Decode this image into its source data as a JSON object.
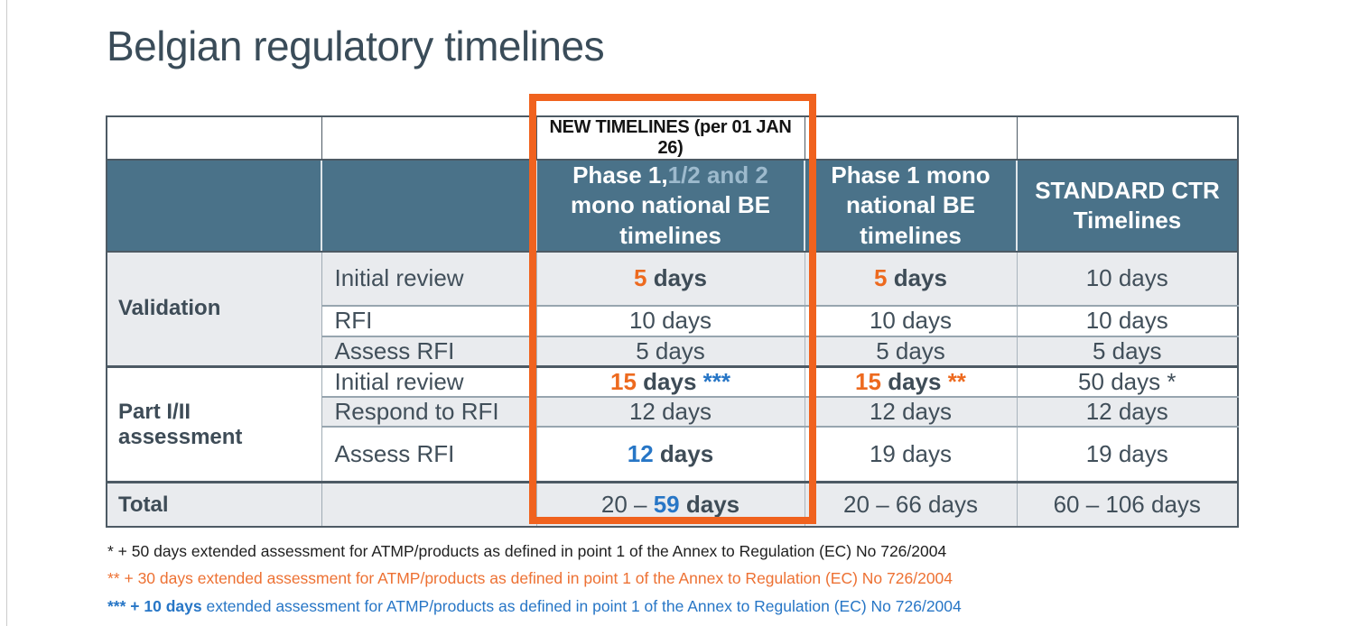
{
  "title": "Belgian regulatory timelines",
  "colors": {
    "title_text": "#3A4C59",
    "header_bg": "#4A7289",
    "header_text": "#FFFFFF",
    "header_lightblue_text": "#9DBACD",
    "row_alt_bg": "#E9EBEE",
    "body_text": "#414F5A",
    "value_orange": "#ED6A1F",
    "value_blue": "#2776C6",
    "highlight_box_orange": "#F0621E",
    "footnote_orange": "#ED7133",
    "footnote_blue": "#2776C6"
  },
  "table": {
    "new_timelines_banner": "NEW TIMELINES (per 01 JAN 26)",
    "column_headers": {
      "phase_1_12_2": [
        {
          "text": "Phase 1,",
          "style": "white-bold"
        },
        {
          "text": "1/2 and 2",
          "style": "lightblue-bold"
        },
        {
          "text": " mono national BE timelines",
          "style": "white-bold"
        }
      ],
      "phase_1_mono": "Phase 1 mono national BE timelines",
      "standard_ctr": "STANDARD CTR Timelines"
    },
    "sections": [
      {
        "label": "Validation",
        "rows": [
          {
            "step": "Initial review",
            "new_be": [
              {
                "text": "5",
                "style": "orange-bold"
              },
              {
                "text": " days",
                "style": "dark-bold"
              }
            ],
            "phase1_be": [
              {
                "text": "5",
                "style": "orange-bold"
              },
              {
                "text": " days",
                "style": "dark-bold"
              }
            ],
            "standard": [
              {
                "text": "10 days",
                "style": "regular"
              }
            ]
          },
          {
            "step": "RFI",
            "new_be": [
              {
                "text": "10 days",
                "style": "regular"
              }
            ],
            "phase1_be": [
              {
                "text": "10 days",
                "style": "regular"
              }
            ],
            "standard": [
              {
                "text": "10 days",
                "style": "regular"
              }
            ]
          },
          {
            "step": "Assess RFI",
            "new_be": [
              {
                "text": "5 days",
                "style": "regular"
              }
            ],
            "phase1_be": [
              {
                "text": "5 days",
                "style": "regular"
              }
            ],
            "standard": [
              {
                "text": "5 days",
                "style": "regular"
              }
            ]
          }
        ]
      },
      {
        "label": "Part I/II assessment",
        "rows": [
          {
            "step": "Initial review",
            "new_be": [
              {
                "text": "15",
                "style": "orange-bold"
              },
              {
                "text": " days ",
                "style": "dark-bold"
              },
              {
                "text": "***",
                "style": "blue-bold"
              }
            ],
            "phase1_be": [
              {
                "text": "15",
                "style": "orange-bold"
              },
              {
                "text": " days ",
                "style": "dark-bold"
              },
              {
                "text": "**",
                "style": "orange-bold"
              }
            ],
            "standard": [
              {
                "text": "50 days *",
                "style": "regular"
              }
            ]
          },
          {
            "step": "Respond to RFI",
            "new_be": [
              {
                "text": "12 days",
                "style": "regular"
              }
            ],
            "phase1_be": [
              {
                "text": "12 days",
                "style": "regular"
              }
            ],
            "standard": [
              {
                "text": "12 days",
                "style": "regular"
              }
            ]
          },
          {
            "step": "Assess RFI",
            "new_be": [
              {
                "text": "12",
                "style": "blue-bold"
              },
              {
                "text": " days",
                "style": "dark-bold"
              }
            ],
            "phase1_be": [
              {
                "text": "19 days",
                "style": "regular"
              }
            ],
            "standard": [
              {
                "text": "19 days",
                "style": "regular"
              }
            ]
          }
        ]
      }
    ],
    "total": {
      "label": "Total",
      "new_be": [
        {
          "text": "20 – ",
          "style": "regular"
        },
        {
          "text": "59",
          "style": "blue-bold"
        },
        {
          "text": " days",
          "style": "dark-bold"
        }
      ],
      "phase1_be": [
        {
          "text": "20 – 66 days",
          "style": "regular"
        }
      ],
      "standard": [
        {
          "text": "60 – 106 days",
          "style": "regular"
        }
      ]
    }
  },
  "footnotes": [
    [
      {
        "text": "* + 50 days extended assessment for ATMP/products as defined in point 1 of the Annex to Regulation (EC) No 726/2004",
        "style": "fn-dark"
      }
    ],
    [
      {
        "text": "** + 30 days extended assessment for ATMP/products as defined in point 1 of the Annex to Regulation (EC) No 726/2004",
        "style": "fn-orange"
      }
    ],
    [
      {
        "text": "*** + 10 days",
        "style": "fn-blue-bold"
      },
      {
        "text": " extended assessment for ATMP/products as defined in point 1 of the Annex to Regulation (EC) No 726/2004",
        "style": "fn-blue"
      }
    ]
  ]
}
